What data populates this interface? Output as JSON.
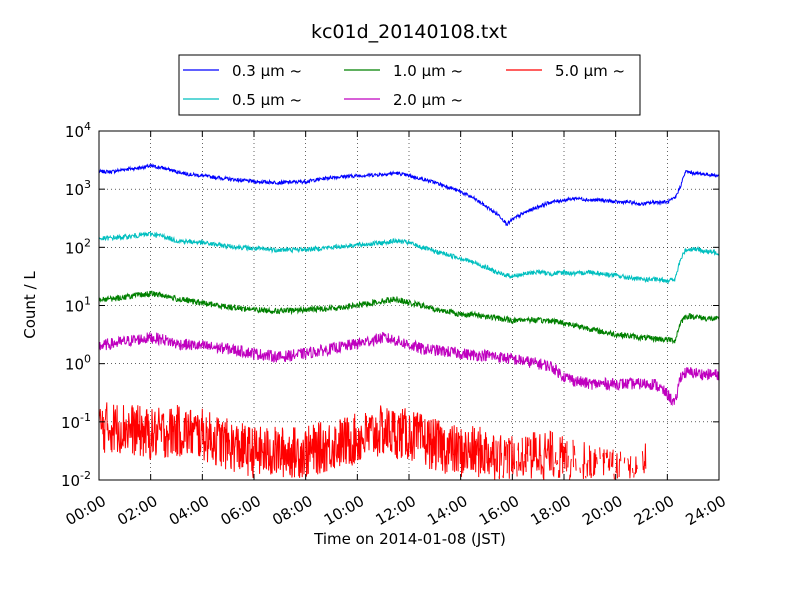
{
  "chart_data": {
    "type": "line",
    "title": "kc01d_20140108.txt",
    "xlabel": "Time on 2014-01-08 (JST)",
    "ylabel": "Count / L",
    "yscale": "log",
    "xlim": [
      0,
      24
    ],
    "ylim": [
      0.01,
      10000
    ],
    "grid": true,
    "legend_position": "top-center",
    "x_ticks": [
      "00:00",
      "02:00",
      "04:00",
      "06:00",
      "08:00",
      "10:00",
      "12:00",
      "14:00",
      "16:00",
      "18:00",
      "20:00",
      "22:00",
      "24:00"
    ],
    "x_tick_hours": [
      0,
      2,
      4,
      6,
      8,
      10,
      12,
      14,
      16,
      18,
      20,
      22,
      24
    ],
    "y_ticks": [
      {
        "value": 0.01,
        "base": "10",
        "exp": "-2"
      },
      {
        "value": 0.1,
        "base": "10",
        "exp": "-1"
      },
      {
        "value": 1,
        "base": "10",
        "exp": "0"
      },
      {
        "value": 10,
        "base": "10",
        "exp": "1"
      },
      {
        "value": 100,
        "base": "10",
        "exp": "2"
      },
      {
        "value": 1000,
        "base": "10",
        "exp": "3"
      },
      {
        "value": 10000,
        "base": "10",
        "exp": "4"
      }
    ],
    "series": [
      {
        "name": "0.3 μm ~",
        "color": "#0000ff",
        "noise": 0.03,
        "x": [
          0,
          0.5,
          1,
          1.5,
          2,
          2.5,
          3,
          3.5,
          4,
          5,
          6,
          7,
          8,
          9,
          10,
          11,
          11.5,
          12,
          12.5,
          13,
          13.5,
          14,
          14.5,
          15,
          15.5,
          15.8,
          16,
          16.5,
          17,
          17.5,
          18,
          18.5,
          19,
          19.5,
          20,
          20.5,
          21,
          21.5,
          22,
          22.3,
          22.5,
          22.7,
          23,
          23.5,
          24
        ],
        "y": [
          2000,
          2000,
          2200,
          2300,
          2500,
          2300,
          2000,
          1800,
          1700,
          1500,
          1350,
          1300,
          1350,
          1600,
          1700,
          1800,
          1900,
          1700,
          1500,
          1300,
          1100,
          900,
          700,
          500,
          350,
          250,
          300,
          400,
          500,
          600,
          650,
          700,
          650,
          650,
          600,
          600,
          550,
          600,
          600,
          700,
          1100,
          2000,
          1900,
          1800,
          1700
        ]
      },
      {
        "name": "0.5 μm ~",
        "color": "#00bfbf",
        "noise": 0.04,
        "x": [
          0,
          0.5,
          1,
          1.5,
          2,
          2.5,
          3,
          3.5,
          4,
          5,
          6,
          7,
          8,
          9,
          10,
          11,
          11.5,
          12,
          12.5,
          13,
          13.5,
          14,
          14.5,
          15,
          15.5,
          16,
          16.5,
          17,
          17.5,
          18,
          18.5,
          19,
          19.5,
          20,
          20.5,
          21,
          21.5,
          22,
          22.3,
          22.5,
          22.7,
          23,
          23.5,
          24
        ],
        "y": [
          140,
          145,
          150,
          160,
          170,
          155,
          130,
          125,
          120,
          105,
          95,
          90,
          92,
          100,
          110,
          120,
          130,
          120,
          100,
          85,
          75,
          65,
          55,
          45,
          35,
          32,
          35,
          38,
          35,
          37,
          35,
          38,
          35,
          33,
          30,
          28,
          28,
          27,
          28,
          60,
          90,
          95,
          85,
          80
        ]
      },
      {
        "name": "1.0 μm ~",
        "color": "#008000",
        "noise": 0.05,
        "x": [
          0,
          0.5,
          1,
          1.5,
          2,
          2.5,
          3,
          3.5,
          4,
          5,
          6,
          7,
          8,
          9,
          10,
          11,
          11.5,
          12,
          12.5,
          13,
          13.5,
          14,
          14.5,
          15,
          15.5,
          16,
          16.5,
          17,
          17.5,
          18,
          18.5,
          19,
          19.5,
          20,
          20.5,
          21,
          21.5,
          22,
          22.3,
          22.5,
          22.7,
          23,
          23.5,
          24
        ],
        "y": [
          13,
          13,
          14,
          15,
          16,
          15,
          13,
          12,
          11,
          9.5,
          8.5,
          8,
          8.5,
          9,
          10,
          12,
          13,
          11,
          10,
          8.5,
          8,
          7,
          7,
          6.5,
          6,
          5.5,
          5.8,
          5.5,
          5.5,
          5,
          4.5,
          4,
          3.5,
          3.2,
          3,
          2.8,
          2.7,
          2.6,
          2.5,
          5,
          6.5,
          6.5,
          6,
          5.8
        ]
      },
      {
        "name": "2.0 μm ~",
        "color": "#bf00bf",
        "noise": 0.1,
        "x": [
          0,
          0.5,
          1,
          1.5,
          2,
          2.5,
          3,
          3.5,
          4,
          5,
          6,
          7,
          8,
          9,
          10,
          11,
          11.5,
          12,
          12.5,
          13,
          13.5,
          14,
          14.5,
          15,
          15.5,
          16,
          16.5,
          17,
          17.5,
          18,
          18.5,
          19,
          19.5,
          20,
          20.5,
          21,
          21.5,
          22,
          22.3,
          22.5,
          22.7,
          23,
          23.5,
          24
        ],
        "y": [
          2,
          2.2,
          2.4,
          2.6,
          2.8,
          2.6,
          2.2,
          2.1,
          2,
          1.8,
          1.5,
          1.3,
          1.5,
          1.8,
          2.2,
          2.8,
          2.5,
          2.1,
          1.8,
          1.7,
          1.6,
          1.5,
          1.4,
          1.4,
          1.3,
          1.2,
          1.1,
          1,
          0.9,
          0.6,
          0.5,
          0.45,
          0.45,
          0.45,
          0.45,
          0.45,
          0.45,
          0.3,
          0.2,
          0.6,
          0.7,
          0.7,
          0.65,
          0.65
        ]
      },
      {
        "name": "5.0 μm ~",
        "color": "#ff0000",
        "noise": 0.45,
        "x": [
          0,
          1,
          2,
          3,
          4,
          5,
          6,
          7,
          8,
          9,
          10,
          11,
          12,
          13,
          14,
          15,
          15.5,
          16,
          16.5,
          17,
          17.5,
          18,
          18.5,
          19,
          19.5,
          20,
          20.5,
          21,
          21.2
        ],
        "y": [
          0.08,
          0.08,
          0.06,
          0.07,
          0.06,
          0.04,
          0.03,
          0.03,
          0.03,
          0.04,
          0.05,
          0.07,
          0.06,
          0.04,
          0.03,
          0.03,
          0.025,
          0.02,
          0.02,
          0.03,
          0.025,
          0.02,
          0.018,
          0.015,
          0.013,
          0.012,
          0.011,
          0.011,
          0.02
        ]
      }
    ]
  }
}
